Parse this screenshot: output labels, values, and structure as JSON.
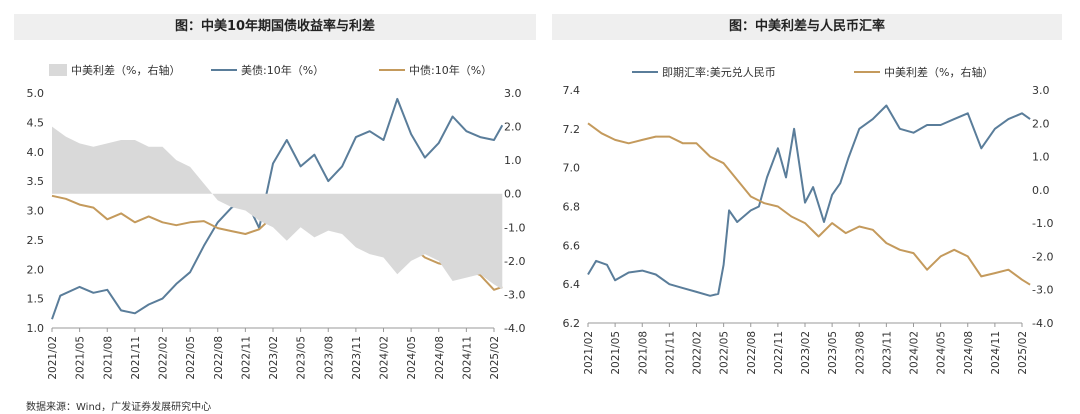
{
  "source_note": "数据来源：Wind，广发证券发展研究中心",
  "chart_data": [
    {
      "type": "line",
      "title": "图：中美10年期国债收益率与利差",
      "x_ticks": [
        "2021/02",
        "2021/05",
        "2021/08",
        "2021/11",
        "2022/02",
        "2022/05",
        "2022/08",
        "2022/11",
        "2023/02",
        "2023/05",
        "2023/08",
        "2023/11",
        "2024/02",
        "2024/05",
        "2024/08",
        "2024/11",
        "2025/02"
      ],
      "y_left": {
        "min": 1.0,
        "max": 5.0,
        "ticks": [
          "1.0",
          "1.5",
          "2.0",
          "2.5",
          "3.0",
          "3.5",
          "4.0",
          "4.5",
          "5.0"
        ]
      },
      "y_right": {
        "min": -4.0,
        "max": 3.0,
        "ticks": [
          "-4.0",
          "-3.0",
          "-2.0",
          "-1.0",
          "0.0",
          "1.0",
          "2.0",
          "3.0"
        ]
      },
      "legend": [
        "中美利差（%，右轴）",
        "美债:10年（%）",
        "中债:10年（%）"
      ],
      "colors": {
        "spread": "#d9d9d9",
        "us10y": "#5a7d9a",
        "cn10y": "#c49a5c"
      },
      "series": [
        {
          "name": "美债:10年（%）",
          "axis": "left",
          "kind": "line",
          "x": [
            0,
            0.3,
            1,
            1.5,
            2,
            2.5,
            3,
            3.5,
            4,
            4.5,
            5,
            5.5,
            6,
            6.5,
            7,
            7.5,
            8,
            8.5,
            9,
            9.5,
            10,
            10.5,
            11,
            11.5,
            12,
            12.5,
            13,
            13.5,
            14,
            14.5,
            15,
            15.5,
            16,
            16.3
          ],
          "values": [
            1.15,
            1.55,
            1.7,
            1.6,
            1.65,
            1.3,
            1.25,
            1.4,
            1.5,
            1.75,
            1.95,
            2.4,
            2.8,
            3.05,
            3.2,
            2.7,
            3.8,
            4.2,
            3.75,
            3.95,
            3.5,
            3.75,
            4.25,
            4.35,
            4.2,
            4.9,
            4.3,
            3.9,
            4.15,
            4.6,
            4.35,
            4.25,
            4.2,
            4.45
          ]
        },
        {
          "name": "中债:10年（%）",
          "axis": "left",
          "kind": "line",
          "x": [
            0,
            0.5,
            1,
            1.5,
            2,
            2.5,
            3,
            3.5,
            4,
            4.5,
            5,
            5.5,
            6,
            6.5,
            7,
            7.5,
            8,
            8.5,
            9,
            9.5,
            10,
            10.5,
            11,
            11.5,
            12,
            12.5,
            13,
            13.5,
            14,
            14.5,
            15,
            15.5,
            16,
            16.3
          ],
          "values": [
            3.25,
            3.2,
            3.1,
            3.05,
            2.85,
            2.95,
            2.8,
            2.9,
            2.8,
            2.75,
            2.8,
            2.82,
            2.7,
            2.65,
            2.6,
            2.68,
            2.9,
            2.88,
            2.85,
            2.75,
            2.7,
            2.65,
            2.55,
            2.55,
            2.5,
            2.45,
            2.4,
            2.2,
            2.1,
            2.05,
            2.0,
            1.9,
            1.65,
            1.7
          ]
        },
        {
          "name": "中美利差（%，右轴）",
          "axis": "right",
          "kind": "area",
          "x": [
            0,
            0.5,
            1,
            1.5,
            2,
            2.5,
            3,
            3.5,
            4,
            4.5,
            5,
            5.5,
            6,
            6.5,
            7,
            7.5,
            8,
            8.5,
            9,
            9.5,
            10,
            10.5,
            11,
            11.5,
            12,
            12.5,
            13,
            13.5,
            14,
            14.5,
            15,
            15.5,
            16,
            16.3
          ],
          "values": [
            2.0,
            1.7,
            1.5,
            1.4,
            1.5,
            1.6,
            1.6,
            1.4,
            1.4,
            1.0,
            0.8,
            0.3,
            -0.2,
            -0.4,
            -0.5,
            -0.8,
            -1.0,
            -1.4,
            -1.0,
            -1.3,
            -1.1,
            -1.2,
            -1.6,
            -1.8,
            -1.9,
            -2.4,
            -2.0,
            -1.8,
            -2.0,
            -2.6,
            -2.5,
            -2.4,
            -2.7,
            -2.85
          ]
        }
      ]
    },
    {
      "type": "line",
      "title": "图：中美利差与人民币汇率",
      "x_ticks": [
        "2021/02",
        "2021/05",
        "2021/08",
        "2021/11",
        "2022/02",
        "2022/05",
        "2022/08",
        "2022/11",
        "2023/02",
        "2023/05",
        "2023/08",
        "2023/11",
        "2024/02",
        "2024/05",
        "2024/08",
        "2024/11",
        "2025/02"
      ],
      "y_left": {
        "min": 6.2,
        "max": 7.4,
        "ticks": [
          "6.2",
          "6.4",
          "6.6",
          "6.8",
          "7.0",
          "7.2",
          "7.4"
        ]
      },
      "y_right": {
        "min": -4.0,
        "max": 3.0,
        "ticks": [
          "-4.0",
          "-3.0",
          "-2.0",
          "-1.0",
          "0.0",
          "1.0",
          "2.0",
          "3.0"
        ]
      },
      "legend": [
        "即期汇率:美元兑人民币",
        "中美利差（%，右轴）"
      ],
      "colors": {
        "fx": "#5a7d9a",
        "spread": "#c49a5c"
      },
      "series": [
        {
          "name": "即期汇率:美元兑人民币",
          "axis": "left",
          "kind": "line",
          "x": [
            0,
            0.3,
            0.7,
            1,
            1.5,
            2,
            2.5,
            3,
            3.5,
            4,
            4.5,
            4.8,
            5,
            5.2,
            5.5,
            6,
            6.3,
            6.6,
            7,
            7.3,
            7.6,
            8,
            8.3,
            8.7,
            9,
            9.3,
            9.6,
            10,
            10.5,
            11,
            11.5,
            12,
            12.5,
            13,
            13.5,
            14,
            14.5,
            15,
            15.5,
            16,
            16.3
          ],
          "values": [
            6.45,
            6.52,
            6.5,
            6.42,
            6.46,
            6.47,
            6.45,
            6.4,
            6.38,
            6.36,
            6.34,
            6.35,
            6.5,
            6.78,
            6.72,
            6.78,
            6.8,
            6.95,
            7.1,
            6.95,
            7.2,
            6.82,
            6.9,
            6.72,
            6.86,
            6.92,
            7.05,
            7.2,
            7.25,
            7.32,
            7.2,
            7.18,
            7.22,
            7.22,
            7.25,
            7.28,
            7.1,
            7.2,
            7.25,
            7.28,
            7.25
          ]
        },
        {
          "name": "中美利差（%，右轴）",
          "axis": "right",
          "kind": "line",
          "x": [
            0,
            0.5,
            1,
            1.5,
            2,
            2.5,
            3,
            3.5,
            4,
            4.5,
            5,
            5.5,
            6,
            6.5,
            7,
            7.5,
            8,
            8.5,
            9,
            9.5,
            10,
            10.5,
            11,
            11.5,
            12,
            12.5,
            13,
            13.5,
            14,
            14.5,
            15,
            15.5,
            16,
            16.3
          ],
          "values": [
            2.0,
            1.7,
            1.5,
            1.4,
            1.5,
            1.6,
            1.6,
            1.4,
            1.4,
            1.0,
            0.8,
            0.3,
            -0.2,
            -0.4,
            -0.5,
            -0.8,
            -1.0,
            -1.4,
            -1.0,
            -1.3,
            -1.1,
            -1.2,
            -1.6,
            -1.8,
            -1.9,
            -2.4,
            -2.0,
            -1.8,
            -2.0,
            -2.6,
            -2.5,
            -2.4,
            -2.7,
            -2.85
          ]
        }
      ]
    }
  ]
}
